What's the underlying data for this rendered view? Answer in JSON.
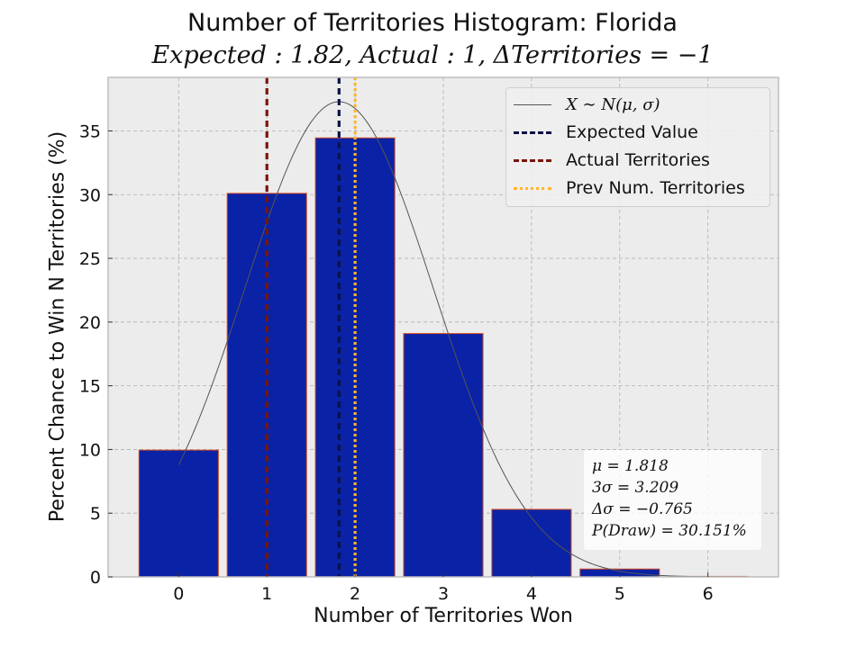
{
  "chart_data": {
    "type": "bar",
    "title": "Number of Territories Histogram: Florida",
    "subtitle": "Expected : 1.82, Actual : 1, ΔTerritories = −1",
    "xlabel": "Number of Territories Won",
    "ylabel": "Percent Chance to Win N Territories (%)",
    "categories": [
      0,
      1,
      2,
      3,
      4,
      5,
      6
    ],
    "values": [
      9.95,
      30.1,
      34.45,
      19.1,
      5.3,
      0.62,
      0.04
    ],
    "xlim": [
      -0.8,
      6.8
    ],
    "ylim": [
      0,
      39.2
    ],
    "xticks": [
      0,
      1,
      2,
      3,
      4,
      5,
      6
    ],
    "yticks": [
      0,
      5,
      10,
      15,
      20,
      25,
      30,
      35
    ],
    "grid": true,
    "normal_curve": {
      "label": "X ∼ N(μ, σ)",
      "mu": 1.818,
      "sigma": 1.0697,
      "color": "#555555"
    },
    "vlines": [
      {
        "label": "Expected Value",
        "x": 1.818,
        "color": "#0a1248",
        "style": "dashed"
      },
      {
        "label": "Actual Territories",
        "x": 1,
        "color": "#7a1408",
        "style": "dashed"
      },
      {
        "label": "Prev Num. Territories",
        "x": 2,
        "color": "#ffb627",
        "style": "dotted"
      }
    ],
    "legend_position": "top-right",
    "stats": [
      "μ = 1.818",
      "3σ = 3.209",
      "Δσ = −0.765",
      "P(Draw) = 30.151%"
    ],
    "colors": {
      "bar_fill": "#0a22a6",
      "bar_edge": "#d84b1f",
      "plot_bg": "#ececec",
      "grid": "#b0b0b0"
    }
  }
}
